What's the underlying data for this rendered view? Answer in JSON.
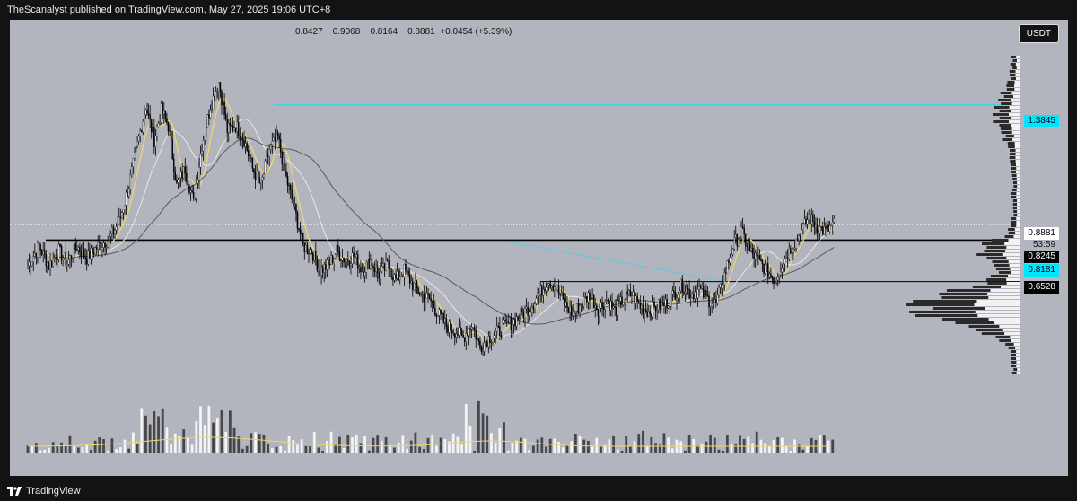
{
  "header": {
    "text": "TheScanalyst published on TradingView.com, May 27, 2025 19:06 UTC+8"
  },
  "footer": {
    "brand": "TradingView"
  },
  "colors": {
    "background": "#b2b5be",
    "frame": "#131313",
    "candle_up": "#ffffff",
    "candle_down": "#000000",
    "ma_fast": "#f2d66b",
    "ma_mid": "#e8e8e8",
    "ma_slow": "#5a5a5a",
    "resistance_line": "#00e5ff"
  },
  "ohlc": {
    "open": "0.8427",
    "high": "0.9068",
    "low": "0.8164",
    "close": "0.8881",
    "change": "+0.0454 (+5.39%)"
  },
  "currency": "USDT",
  "price_tags": {
    "resistance": "1.3845",
    "current": "0.8881",
    "countdown": "53:59",
    "level_black": "0.8245",
    "level_cyan": "0.8181",
    "support": "0.6528"
  },
  "chart_data": {
    "type": "candlestick",
    "y_range": [
      0.25,
      1.7
    ],
    "horizontal_levels": [
      1.3845,
      0.8245,
      0.6528
    ],
    "current_price": 0.8881,
    "close_anchors": [
      [
        0,
        0.72
      ],
      [
        8,
        0.8
      ],
      [
        15,
        0.72
      ],
      [
        22,
        0.78
      ],
      [
        28,
        0.73
      ],
      [
        35,
        0.8
      ],
      [
        42,
        0.75
      ],
      [
        50,
        0.8
      ],
      [
        58,
        0.83
      ],
      [
        65,
        0.9
      ],
      [
        72,
        1.05
      ],
      [
        78,
        1.22
      ],
      [
        84,
        1.38
      ],
      [
        90,
        1.24
      ],
      [
        95,
        1.36
      ],
      [
        100,
        1.3
      ],
      [
        106,
        1.05
      ],
      [
        112,
        1.12
      ],
      [
        118,
        0.98
      ],
      [
        124,
        1.22
      ],
      [
        130,
        1.38
      ],
      [
        136,
        1.48
      ],
      [
        142,
        1.28
      ],
      [
        148,
        1.3
      ],
      [
        154,
        1.24
      ],
      [
        160,
        1.12
      ],
      [
        166,
        1.05
      ],
      [
        172,
        1.2
      ],
      [
        178,
        1.25
      ],
      [
        184,
        1.08
      ],
      [
        190,
        0.95
      ],
      [
        196,
        0.8
      ],
      [
        202,
        0.78
      ],
      [
        208,
        0.7
      ],
      [
        214,
        0.72
      ],
      [
        220,
        0.78
      ],
      [
        226,
        0.74
      ],
      [
        232,
        0.76
      ],
      [
        238,
        0.7
      ],
      [
        244,
        0.74
      ],
      [
        250,
        0.68
      ],
      [
        256,
        0.72
      ],
      [
        262,
        0.66
      ],
      [
        268,
        0.7
      ],
      [
        274,
        0.64
      ],
      [
        280,
        0.6
      ],
      [
        286,
        0.58
      ],
      [
        292,
        0.52
      ],
      [
        298,
        0.47
      ],
      [
        304,
        0.45
      ],
      [
        310,
        0.42
      ],
      [
        316,
        0.48
      ],
      [
        322,
        0.38
      ],
      [
        328,
        0.42
      ],
      [
        334,
        0.44
      ],
      [
        340,
        0.47
      ],
      [
        346,
        0.49
      ],
      [
        352,
        0.52
      ],
      [
        358,
        0.55
      ],
      [
        364,
        0.6
      ],
      [
        370,
        0.66
      ],
      [
        376,
        0.63
      ],
      [
        382,
        0.56
      ],
      [
        388,
        0.52
      ],
      [
        394,
        0.56
      ],
      [
        400,
        0.6
      ],
      [
        406,
        0.54
      ],
      [
        412,
        0.58
      ],
      [
        418,
        0.53
      ],
      [
        424,
        0.58
      ],
      [
        430,
        0.6
      ],
      [
        436,
        0.55
      ],
      [
        442,
        0.53
      ],
      [
        448,
        0.55
      ],
      [
        454,
        0.56
      ],
      [
        460,
        0.6
      ],
      [
        466,
        0.64
      ],
      [
        472,
        0.6
      ],
      [
        478,
        0.62
      ],
      [
        484,
        0.58
      ],
      [
        490,
        0.56
      ],
      [
        496,
        0.68
      ],
      [
        502,
        0.8
      ],
      [
        508,
        0.86
      ],
      [
        514,
        0.78
      ],
      [
        520,
        0.74
      ],
      [
        526,
        0.7
      ],
      [
        532,
        0.66
      ],
      [
        538,
        0.74
      ],
      [
        544,
        0.8
      ],
      [
        550,
        0.85
      ],
      [
        556,
        0.92
      ],
      [
        562,
        0.88
      ],
      [
        568,
        0.86
      ],
      [
        574,
        0.89
      ]
    ]
  }
}
